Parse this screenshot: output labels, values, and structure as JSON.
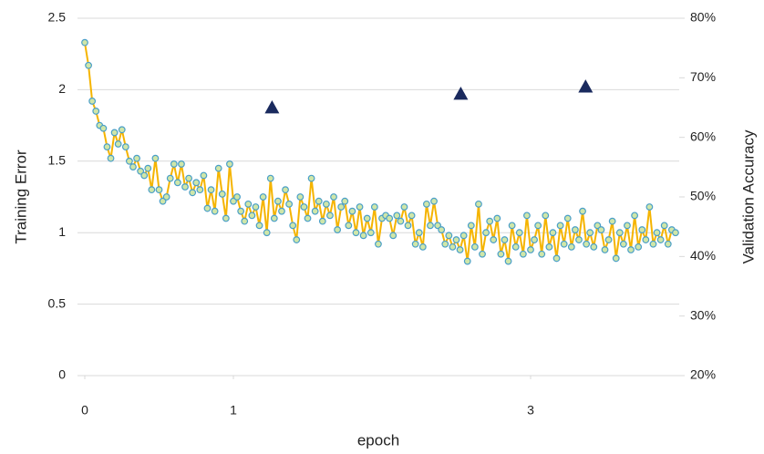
{
  "chart_data": {
    "type": "combo",
    "xlabel": "epoch",
    "ylabel": "Training Error",
    "y2label": "Validation Accuracy",
    "xlim": [
      0,
      4
    ],
    "xticks": [
      0,
      1,
      3
    ],
    "ylim": [
      0,
      2.5
    ],
    "yticks": [
      0,
      0.5,
      1,
      1.5,
      2,
      2.5
    ],
    "y2lim": [
      20,
      80
    ],
    "y2ticks": [
      {
        "value": 20,
        "label": "20%"
      },
      {
        "value": 30,
        "label": "30%"
      },
      {
        "value": 40,
        "label": "40%"
      },
      {
        "value": 50,
        "label": "50%"
      },
      {
        "value": 60,
        "label": "60%"
      },
      {
        "value": 70,
        "label": "70%"
      },
      {
        "value": 80,
        "label": "80%"
      }
    ],
    "grid": true,
    "series": [
      {
        "type": "line",
        "color": "#f5b400",
        "marker": "circle",
        "marker_color": "#cfe6a8",
        "marker_edge_color": "#4a9fc8",
        "x": [
          0,
          0.025,
          0.05,
          0.075,
          0.1,
          0.125,
          0.15,
          0.175,
          0.2,
          0.225,
          0.25,
          0.275,
          0.3,
          0.325,
          0.35,
          0.375,
          0.4,
          0.425,
          0.45,
          0.475,
          0.5,
          0.525,
          0.55,
          0.575,
          0.6,
          0.625,
          0.65,
          0.675,
          0.7,
          0.725,
          0.75,
          0.775,
          0.8,
          0.825,
          0.85,
          0.875,
          0.9,
          0.925,
          0.95,
          0.975,
          1,
          1.025,
          1.05,
          1.075,
          1.1,
          1.125,
          1.15,
          1.175,
          1.2,
          1.225,
          1.25,
          1.275,
          1.3,
          1.325,
          1.35,
          1.375,
          1.4,
          1.425,
          1.45,
          1.475,
          1.5,
          1.525,
          1.55,
          1.575,
          1.6,
          1.625,
          1.65,
          1.675,
          1.7,
          1.725,
          1.75,
          1.775,
          1.8,
          1.825,
          1.85,
          1.875,
          1.9,
          1.925,
          1.95,
          1.975,
          2,
          2.025,
          2.05,
          2.075,
          2.1,
          2.125,
          2.15,
          2.175,
          2.2,
          2.225,
          2.25,
          2.275,
          2.3,
          2.325,
          2.35,
          2.375,
          2.4,
          2.425,
          2.45,
          2.475,
          2.5,
          2.525,
          2.55,
          2.575,
          2.6,
          2.625,
          2.65,
          2.675,
          2.7,
          2.725,
          2.75,
          2.775,
          2.8,
          2.825,
          2.85,
          2.875,
          2.9,
          2.925,
          2.95,
          2.975,
          3,
          3.025,
          3.05,
          3.075,
          3.1,
          3.125,
          3.15,
          3.175,
          3.2,
          3.225,
          3.25,
          3.275,
          3.3,
          3.325,
          3.35,
          3.375,
          3.4,
          3.425,
          3.45,
          3.475,
          3.5,
          3.525,
          3.55,
          3.575,
          3.6,
          3.625,
          3.65,
          3.675,
          3.7,
          3.725,
          3.75,
          3.775,
          3.8,
          3.825,
          3.85,
          3.875,
          3.9,
          3.925,
          3.95,
          3.975
        ],
        "values": [
          2.33,
          2.17,
          1.92,
          1.85,
          1.75,
          1.73,
          1.6,
          1.52,
          1.7,
          1.62,
          1.72,
          1.6,
          1.5,
          1.46,
          1.52,
          1.43,
          1.4,
          1.45,
          1.3,
          1.52,
          1.3,
          1.22,
          1.25,
          1.38,
          1.48,
          1.35,
          1.48,
          1.32,
          1.38,
          1.28,
          1.35,
          1.3,
          1.4,
          1.17,
          1.3,
          1.15,
          1.45,
          1.27,
          1.1,
          1.48,
          1.22,
          1.25,
          1.15,
          1.08,
          1.2,
          1.12,
          1.18,
          1.05,
          1.25,
          1.0,
          1.38,
          1.1,
          1.22,
          1.15,
          1.3,
          1.2,
          1.05,
          0.95,
          1.25,
          1.18,
          1.1,
          1.38,
          1.15,
          1.22,
          1.08,
          1.2,
          1.12,
          1.25,
          1.02,
          1.18,
          1.22,
          1.05,
          1.15,
          1.0,
          1.18,
          0.98,
          1.1,
          1.0,
          1.18,
          0.92,
          1.1,
          1.12,
          1.1,
          0.98,
          1.12,
          1.08,
          1.18,
          1.05,
          1.12,
          0.92,
          1.0,
          0.9,
          1.2,
          1.05,
          1.22,
          1.05,
          1.02,
          0.92,
          0.98,
          0.9,
          0.95,
          0.88,
          0.98,
          0.8,
          1.05,
          0.9,
          1.2,
          0.85,
          1.0,
          1.08,
          0.95,
          1.1,
          0.85,
          0.95,
          0.8,
          1.05,
          0.9,
          1.0,
          0.85,
          1.12,
          0.88,
          0.95,
          1.05,
          0.85,
          1.12,
          0.9,
          1.0,
          0.82,
          1.05,
          0.92,
          1.1,
          0.9,
          1.02,
          0.95,
          1.15,
          0.92,
          1.0,
          0.9,
          1.05,
          1.02,
          0.88,
          0.95,
          1.08,
          0.82,
          1.0,
          0.92,
          1.05,
          0.88,
          1.12,
          0.9,
          1.02,
          0.95,
          1.18,
          0.92,
          1.0,
          0.95,
          1.05,
          0.92,
          1.02,
          1.0
        ]
      },
      {
        "type": "scatter",
        "axis": "y2",
        "marker": "triangle",
        "color": "#1a2a5e",
        "x": [
          1.26,
          2.53,
          3.37
        ],
        "values": [
          65,
          67.3,
          68.5
        ]
      }
    ]
  }
}
